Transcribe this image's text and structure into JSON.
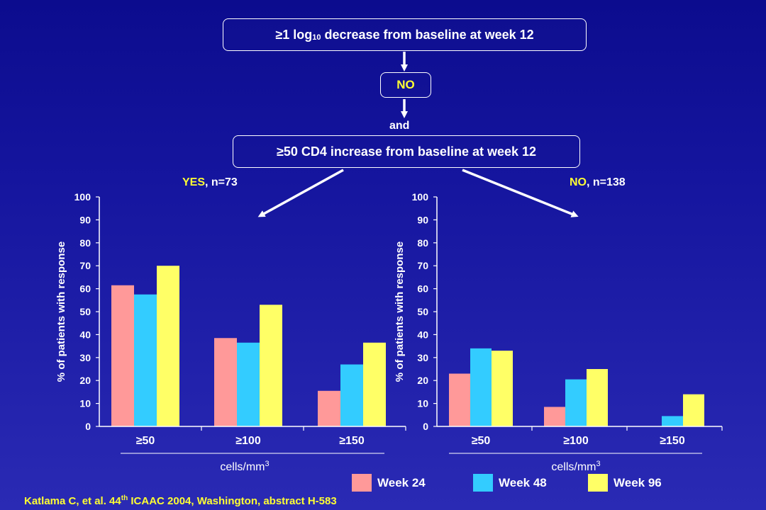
{
  "flow": {
    "top_box": {
      "prefix": "≥1 log",
      "sub": "10",
      "suffix": " decrease from baseline at week 12"
    },
    "no_box": "NO",
    "and_label": "and",
    "cd4_box": "≥50 CD4 increase from baseline at week 12",
    "branch_yes": {
      "label": "YES",
      "rest": ", n=73"
    },
    "branch_no": {
      "label": "NO",
      "rest": ", n=138"
    }
  },
  "colors": {
    "week24": "#ff9999",
    "week48": "#33ccff",
    "week96": "#ffff66",
    "accent": "#ffff33",
    "text": "#ffffff"
  },
  "legend": [
    {
      "label": "Week 24",
      "color": "#ff9999"
    },
    {
      "label": "Week 48",
      "color": "#33ccff"
    },
    {
      "label": "Week 96",
      "color": "#ffff66"
    }
  ],
  "citation": {
    "text1": "Katlama C, et al. 44",
    "sup": "th",
    "text2": " ICAAC 2004, Washington, abstract H-583"
  },
  "chart_data": [
    {
      "type": "bar",
      "categories": [
        "≥50",
        "≥100",
        "≥150"
      ],
      "series": [
        {
          "name": "Week 24",
          "values": [
            61.5,
            38.5,
            15.5
          ]
        },
        {
          "name": "Week 48",
          "values": [
            57.5,
            36.5,
            27
          ]
        },
        {
          "name": "Week 96",
          "values": [
            70,
            53,
            36.5
          ]
        }
      ],
      "ylabel": "% of patients with response",
      "xlabel": "cells/mm",
      "xlabel_sup": "3",
      "ylim": [
        0,
        100
      ],
      "yticks": [
        0,
        10,
        20,
        30,
        40,
        50,
        60,
        70,
        80,
        90,
        100
      ]
    },
    {
      "type": "bar",
      "categories": [
        "≥50",
        "≥100",
        "≥150"
      ],
      "series": [
        {
          "name": "Week 24",
          "values": [
            23,
            8.5,
            0
          ]
        },
        {
          "name": "Week 48",
          "values": [
            34,
            20.5,
            4.5
          ]
        },
        {
          "name": "Week 96",
          "values": [
            33,
            25,
            14
          ]
        }
      ],
      "ylabel": "% of patients with response",
      "xlabel": "cells/mm",
      "xlabel_sup": "3",
      "ylim": [
        0,
        100
      ],
      "yticks": [
        0,
        10,
        20,
        30,
        40,
        50,
        60,
        70,
        80,
        90,
        100
      ]
    }
  ]
}
